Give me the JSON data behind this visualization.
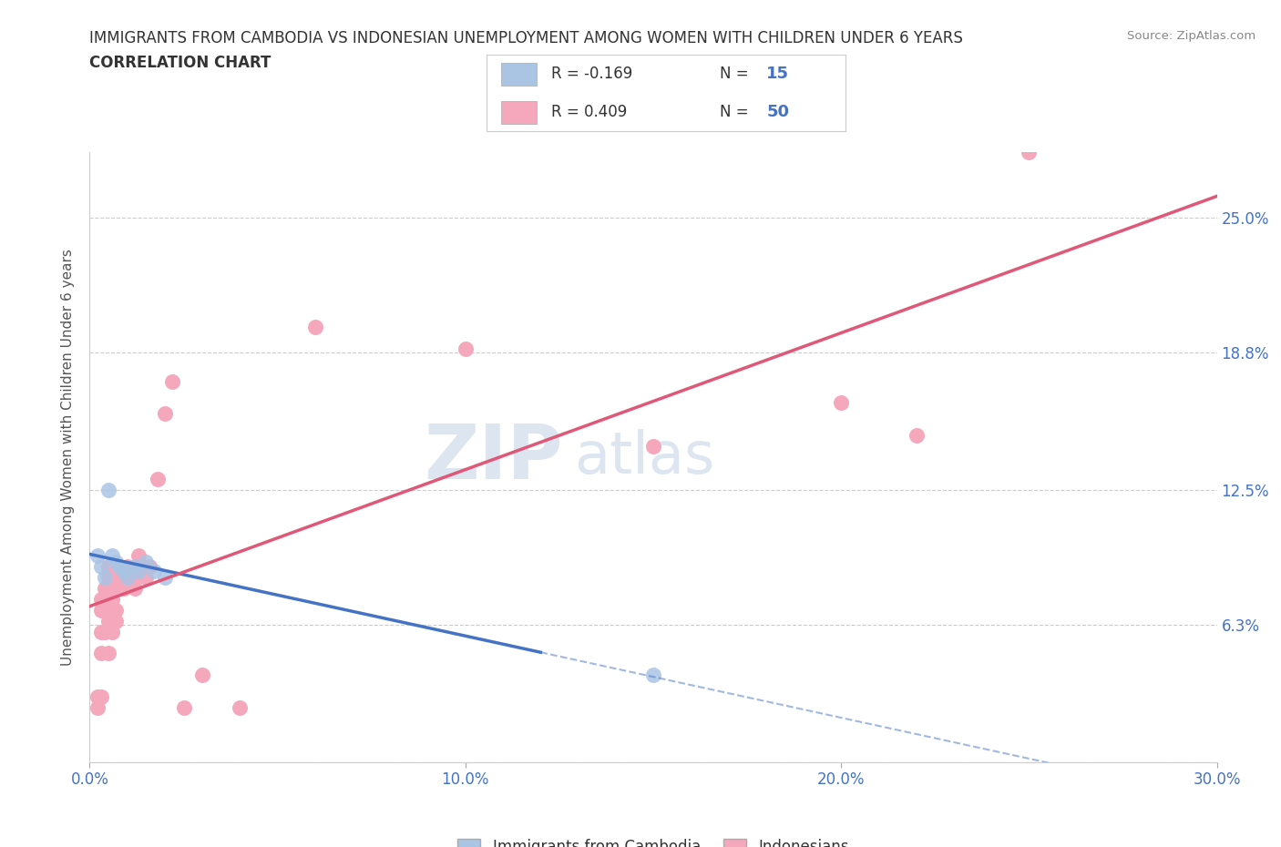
{
  "title": "IMMIGRANTS FROM CAMBODIA VS INDONESIAN UNEMPLOYMENT AMONG WOMEN WITH CHILDREN UNDER 6 YEARS",
  "subtitle": "CORRELATION CHART",
  "source": "Source: ZipAtlas.com",
  "ylabel": "Unemployment Among Women with Children Under 6 years",
  "xlim": [
    0.0,
    0.3
  ],
  "ylim": [
    0.0,
    0.28
  ],
  "yticks": [
    0.0,
    0.063,
    0.125,
    0.188,
    0.25
  ],
  "ytick_labels": [
    "",
    "6.3%",
    "12.5%",
    "18.8%",
    "25.0%"
  ],
  "xticks": [
    0.0,
    0.1,
    0.2,
    0.3
  ],
  "xtick_labels": [
    "0.0%",
    "10.0%",
    "20.0%",
    "30.0%"
  ],
  "cambodia_color": "#aac4e4",
  "indonesian_color": "#f5a8bc",
  "cambodia_trendline_color": "#4472c4",
  "indonesian_trendline_color": "#e05878",
  "watermark_color": "#dde5f0",
  "background_color": "#ffffff",
  "grid_color": "#cccccc",
  "tick_label_color": "#4472c4",
  "cambodia_points": [
    [
      0.002,
      0.095
    ],
    [
      0.003,
      0.09
    ],
    [
      0.004,
      0.085
    ],
    [
      0.005,
      0.125
    ],
    [
      0.006,
      0.095
    ],
    [
      0.007,
      0.092
    ],
    [
      0.008,
      0.09
    ],
    [
      0.009,
      0.088
    ],
    [
      0.01,
      0.085
    ],
    [
      0.012,
      0.09
    ],
    [
      0.013,
      0.088
    ],
    [
      0.015,
      0.092
    ],
    [
      0.017,
      0.088
    ],
    [
      0.02,
      0.085
    ],
    [
      0.15,
      0.04
    ]
  ],
  "indonesian_points": [
    [
      0.002,
      0.025
    ],
    [
      0.002,
      0.03
    ],
    [
      0.003,
      0.03
    ],
    [
      0.003,
      0.05
    ],
    [
      0.003,
      0.06
    ],
    [
      0.003,
      0.07
    ],
    [
      0.003,
      0.075
    ],
    [
      0.004,
      0.06
    ],
    [
      0.004,
      0.07
    ],
    [
      0.004,
      0.075
    ],
    [
      0.004,
      0.08
    ],
    [
      0.005,
      0.05
    ],
    [
      0.005,
      0.065
    ],
    [
      0.005,
      0.075
    ],
    [
      0.005,
      0.08
    ],
    [
      0.005,
      0.085
    ],
    [
      0.005,
      0.09
    ],
    [
      0.006,
      0.06
    ],
    [
      0.006,
      0.065
    ],
    [
      0.006,
      0.07
    ],
    [
      0.006,
      0.075
    ],
    [
      0.006,
      0.08
    ],
    [
      0.006,
      0.085
    ],
    [
      0.007,
      0.065
    ],
    [
      0.007,
      0.07
    ],
    [
      0.007,
      0.085
    ],
    [
      0.007,
      0.09
    ],
    [
      0.008,
      0.085
    ],
    [
      0.008,
      0.09
    ],
    [
      0.009,
      0.08
    ],
    [
      0.01,
      0.085
    ],
    [
      0.01,
      0.09
    ],
    [
      0.012,
      0.08
    ],
    [
      0.012,
      0.085
    ],
    [
      0.013,
      0.095
    ],
    [
      0.014,
      0.09
    ],
    [
      0.015,
      0.085
    ],
    [
      0.016,
      0.09
    ],
    [
      0.018,
      0.13
    ],
    [
      0.02,
      0.16
    ],
    [
      0.022,
      0.175
    ],
    [
      0.025,
      0.025
    ],
    [
      0.03,
      0.04
    ],
    [
      0.04,
      0.025
    ],
    [
      0.06,
      0.2
    ],
    [
      0.1,
      0.19
    ],
    [
      0.15,
      0.145
    ],
    [
      0.2,
      0.165
    ],
    [
      0.22,
      0.15
    ],
    [
      0.25,
      0.28
    ]
  ]
}
